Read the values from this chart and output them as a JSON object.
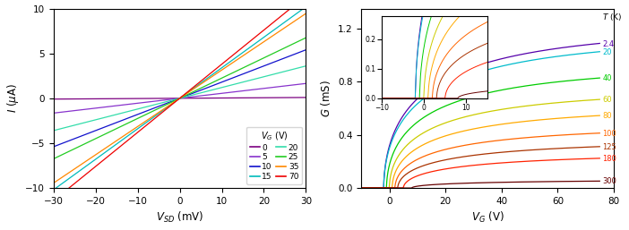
{
  "left": {
    "vsd_range": [
      -30,
      30
    ],
    "ylim": [
      -10,
      10
    ],
    "xlabel": "$V_{SD}$ (mV)",
    "ylabel": "$I$ ($\\mu$A)",
    "vg_values": [
      0,
      5,
      10,
      15,
      20,
      25,
      35,
      70
    ],
    "slopes": [
      0.003,
      0.055,
      0.18,
      0.34,
      0.12,
      0.225,
      0.315,
      0.38
    ],
    "colors": [
      "#7B0080",
      "#8833CC",
      "#1111CC",
      "#00BBBB",
      "#33DDAA",
      "#22CC22",
      "#FF8800",
      "#EE0000"
    ],
    "legend_labels": [
      "0",
      "5",
      "10",
      "15",
      "20",
      "25",
      "35",
      "70"
    ],
    "xticks": [
      -30,
      -20,
      -10,
      0,
      10,
      20,
      30
    ],
    "yticks": [
      -10,
      -5,
      0,
      5,
      10
    ]
  },
  "right": {
    "xlim": [
      -10,
      80
    ],
    "ylim": [
      0,
      1.35
    ],
    "xlabel": "$V_G$ (V)",
    "ylabel": "$G$ (mS)",
    "temperatures": [
      2.4,
      20,
      40,
      60,
      80,
      100,
      125,
      180,
      300
    ],
    "colors": [
      "#5500AA",
      "#00BBCC",
      "#00CC00",
      "#CCCC00",
      "#FFAA00",
      "#FF6600",
      "#AA3300",
      "#FF2200",
      "#660000"
    ],
    "G_max": [
      1.22,
      1.15,
      0.93,
      0.75,
      0.62,
      0.475,
      0.365,
      0.27,
      0.065
    ],
    "threshold_V": [
      -2,
      -2,
      -1,
      0,
      1,
      2,
      3,
      5,
      8
    ],
    "scale": [
      18,
      18,
      18,
      18,
      19,
      20,
      22,
      25,
      28
    ],
    "power": [
      0.55,
      0.55,
      0.55,
      0.55,
      0.55,
      0.55,
      0.55,
      0.55,
      0.55
    ],
    "xticks": [
      0,
      20,
      40,
      60,
      80
    ],
    "yticks": [
      0.0,
      0.4,
      0.8,
      1.2
    ],
    "inset": {
      "xlim": [
        -10,
        15
      ],
      "ylim": [
        0,
        0.28
      ],
      "yticks": [
        0.0,
        0.1,
        0.2
      ],
      "xticks": [
        -10,
        0,
        10
      ]
    }
  }
}
